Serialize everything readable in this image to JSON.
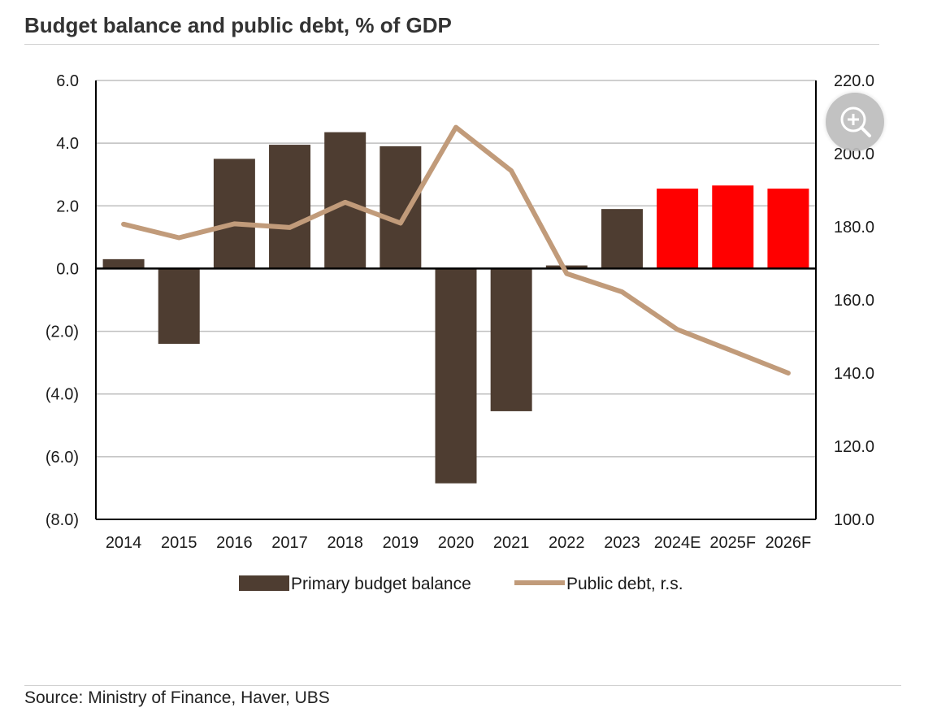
{
  "page": {
    "title": "Budget balance and public debt, % of GDP",
    "source": "Source: Ministry of Finance, Haver, UBS"
  },
  "zoom_button": {
    "icon": "zoom-in-icon"
  },
  "colors": {
    "actual_bar": "#4e3d31",
    "forecast_bar": "#ff0000",
    "debt_line": "#c19b7a",
    "zero_axis": "#000000",
    "grid": "#bfbfbf"
  },
  "chart_data": {
    "type": "bar",
    "title": "Budget balance and public debt, % of GDP",
    "categories": [
      "2014",
      "2015",
      "2016",
      "2017",
      "2018",
      "2019",
      "2020",
      "2021",
      "2022",
      "2023",
      "2024E",
      "2025F",
      "2026F"
    ],
    "series": [
      {
        "name": "Primary budget balance",
        "type": "bar",
        "axis": "left",
        "values": [
          0.3,
          -2.4,
          3.5,
          3.95,
          4.35,
          3.9,
          -6.85,
          -4.55,
          0.1,
          1.9,
          2.55,
          2.65,
          2.55
        ],
        "highlight_from_index": 10
      },
      {
        "name": "Public debt, r.s.",
        "type": "line",
        "axis": "right",
        "values": [
          180.7,
          177.0,
          180.8,
          179.8,
          186.7,
          181.0,
          207.2,
          195.3,
          167.2,
          162.2,
          151.9,
          146.0,
          140.0
        ]
      }
    ],
    "y_left": {
      "ylim": [
        -8,
        6
      ],
      "ticks": [
        "(8.0)",
        "(6.0)",
        "(4.0)",
        "(2.0)",
        "0.0",
        "2.0",
        "4.0",
        "6.0"
      ]
    },
    "y_right": {
      "ylim": [
        100,
        220
      ],
      "ticks": [
        "100.0",
        "120.0",
        "140.0",
        "160.0",
        "180.0",
        "200.0",
        "220.0"
      ]
    },
    "grid": true,
    "legend_position": "bottom"
  }
}
